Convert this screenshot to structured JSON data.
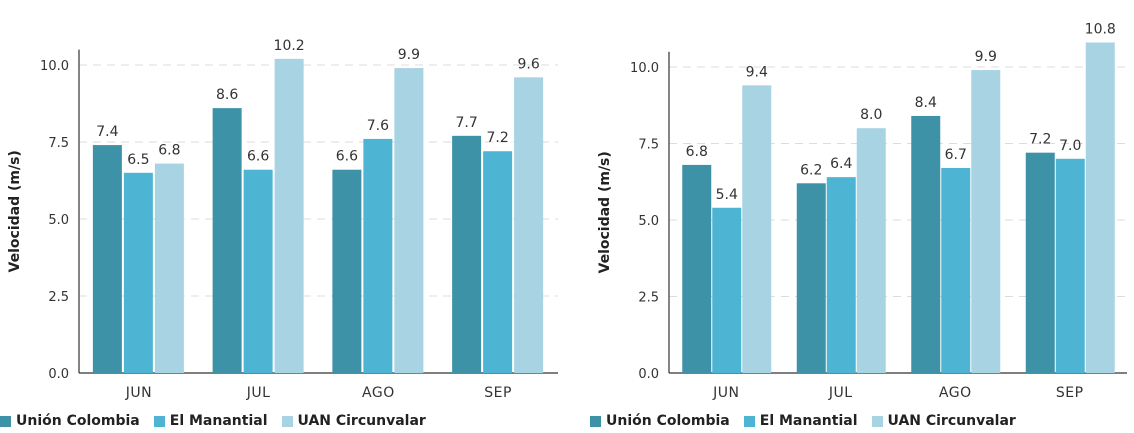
{
  "colors": {
    "series": [
      "#3d92a8",
      "#4db5d3",
      "#a7d3e3"
    ],
    "grid": "#dddddd",
    "axis": "#333333"
  },
  "chart_data": [
    {
      "type": "bar",
      "categories": [
        "JUN",
        "JUL",
        "AGO",
        "SEP"
      ],
      "ylabel": "Velocidad (m/s)",
      "xlabel": "",
      "ylim": [
        0,
        10.5
      ],
      "yticks": [
        "0.0",
        "2.5",
        "5.0",
        "7.5",
        "10.0"
      ],
      "grid": "horizontal dashed",
      "legend_position": "bottom",
      "series": [
        {
          "name": "Unión Colombia",
          "values": [
            7.4,
            8.6,
            6.6,
            7.7
          ],
          "labels": [
            "7.4",
            "8.6",
            "6.6",
            "7.7"
          ]
        },
        {
          "name": "El Manantial",
          "values": [
            6.5,
            6.6,
            7.6,
            7.2
          ],
          "labels": [
            "6.5",
            "6.6",
            "7.6",
            "7.2"
          ]
        },
        {
          "name": "UAN Circunvalar",
          "values": [
            6.8,
            10.2,
            9.9,
            9.6
          ],
          "labels": [
            "6.8",
            "10.2",
            "9.9",
            "9.6"
          ]
        }
      ]
    },
    {
      "type": "bar",
      "categories": [
        "JUN",
        "JUL",
        "AGO",
        "SEP"
      ],
      "ylabel": "Velocidad (m/s)",
      "xlabel": "",
      "ylim": [
        0,
        10.5
      ],
      "yticks": [
        "0.0",
        "2.5",
        "5.0",
        "7.5",
        "10.0"
      ],
      "grid": "horizontal dashed",
      "legend_position": "bottom",
      "series": [
        {
          "name": "Unión Colombia",
          "values": [
            6.8,
            6.2,
            8.4,
            7.2
          ],
          "labels": [
            "6.8",
            "6.2",
            "8.4",
            "7.2"
          ]
        },
        {
          "name": "El Manantial",
          "values": [
            5.4,
            6.4,
            6.7,
            7.0
          ],
          "labels": [
            "5.4",
            "6.4",
            "6.7",
            "7.0"
          ]
        },
        {
          "name": "UAN Circunvalar",
          "values": [
            9.4,
            8.0,
            9.9,
            10.8
          ],
          "labels": [
            "9.4",
            "8.0",
            "9.9",
            "10.8"
          ]
        }
      ]
    }
  ]
}
